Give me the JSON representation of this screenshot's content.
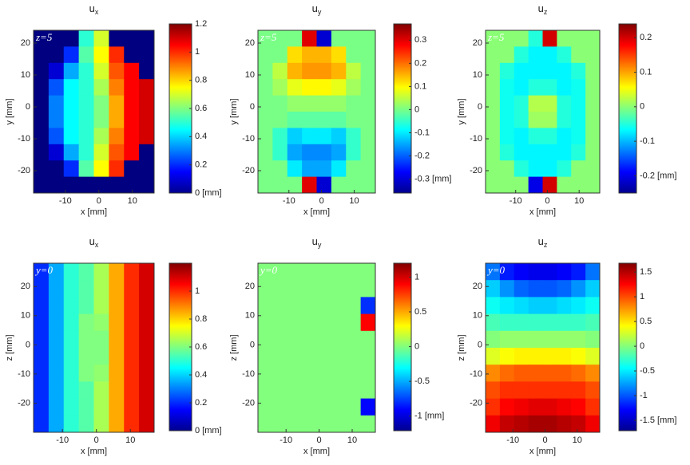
{
  "chart_data": [
    {
      "type": "heatmap",
      "title": "u",
      "title_sub": "x",
      "annotation": "z=5",
      "xlabel": "x [mm]",
      "ylabel": "y [mm]",
      "xlim": [
        -19.5,
        16.5
      ],
      "ylim": [
        -27,
        24
      ],
      "xticks": [
        -10,
        0,
        10
      ],
      "yticks": [
        -20,
        -10,
        0,
        10,
        20
      ],
      "clim": [
        0,
        1.2
      ],
      "cticks": [
        {
          "value": 0,
          "label": "0 [mm]"
        },
        0.2,
        0.4,
        0.6,
        0.8,
        1,
        1.2
      ],
      "z": [
        [
          0,
          0,
          0,
          0.5,
          0.7,
          0,
          0,
          0
        ],
        [
          0,
          0,
          0.2,
          0.55,
          0.75,
          1.0,
          0,
          0
        ],
        [
          0,
          0.1,
          0.35,
          0.5,
          0.7,
          0.95,
          1.05,
          0
        ],
        [
          0,
          0.25,
          0.45,
          0.5,
          0.65,
          0.9,
          1.05,
          1.1
        ],
        [
          0,
          0.3,
          0.45,
          0.5,
          0.6,
          0.85,
          1.05,
          1.1
        ],
        [
          0,
          0.3,
          0.45,
          0.5,
          0.6,
          0.85,
          1.05,
          1.1
        ],
        [
          0,
          0.25,
          0.45,
          0.5,
          0.65,
          0.9,
          1.05,
          1.1
        ],
        [
          0,
          0.1,
          0.35,
          0.5,
          0.7,
          0.95,
          1.05,
          0
        ],
        [
          0,
          0,
          0.2,
          0.55,
          0.75,
          1.0,
          0,
          0
        ],
        [
          0,
          0,
          0,
          0,
          0,
          0,
          0,
          0
        ]
      ]
    },
    {
      "type": "heatmap",
      "title": "u",
      "title_sub": "y",
      "annotation": "z=5",
      "xlabel": "x [mm]",
      "ylabel": "y [mm]",
      "xlim": [
        -19.5,
        16.5
      ],
      "ylim": [
        -27,
        24
      ],
      "xticks": [
        -10,
        0,
        10
      ],
      "yticks": [
        -20,
        -10,
        0,
        10,
        20
      ],
      "clim": [
        -0.36,
        0.37
      ],
      "cticks": [
        {
          "value": -0.3,
          "label": "-0.3 [mm]"
        },
        -0.2,
        -0.1,
        0,
        0.1,
        0.2,
        0.3
      ],
      "z": [
        [
          0,
          0,
          0,
          0.3,
          -0.3,
          0,
          0,
          0
        ],
        [
          0,
          0,
          0.12,
          0.15,
          0.15,
          0.12,
          0,
          0
        ],
        [
          0,
          0.05,
          0.15,
          0.17,
          0.17,
          0.15,
          0.05,
          0
        ],
        [
          0,
          0.03,
          0.08,
          0.1,
          0.1,
          0.08,
          0.03,
          0
        ],
        [
          0,
          0,
          0.02,
          0.02,
          0.02,
          0.02,
          0,
          0
        ],
        [
          0,
          0,
          -0.02,
          -0.02,
          -0.02,
          -0.02,
          0,
          0
        ],
        [
          0,
          -0.05,
          -0.12,
          -0.1,
          -0.1,
          -0.12,
          -0.05,
          0
        ],
        [
          0,
          -0.05,
          -0.15,
          -0.17,
          -0.17,
          -0.15,
          -0.05,
          0
        ],
        [
          0,
          0,
          -0.1,
          -0.15,
          -0.15,
          -0.1,
          0,
          0
        ],
        [
          0,
          0,
          0,
          0.3,
          -0.3,
          0,
          0,
          0
        ]
      ]
    },
    {
      "type": "heatmap",
      "title": "u",
      "title_sub": "z",
      "annotation": "z=5",
      "xlabel": "x [mm]",
      "ylabel": "y [mm]",
      "xlim": [
        -19.5,
        16.5
      ],
      "ylim": [
        -27,
        24
      ],
      "xticks": [
        -10,
        0,
        10
      ],
      "yticks": [
        -20,
        -10,
        0,
        10,
        20
      ],
      "clim": [
        -0.25,
        0.24
      ],
      "cticks": [
        {
          "value": -0.2,
          "label": "-0.2 [mm]"
        },
        -0.1,
        0,
        0.1,
        0.2
      ],
      "z": [
        [
          0,
          0,
          0,
          -0.05,
          0.2,
          0,
          0,
          0
        ],
        [
          0,
          0,
          -0.05,
          -0.07,
          -0.07,
          -0.05,
          0,
          0
        ],
        [
          0,
          -0.05,
          -0.07,
          -0.07,
          -0.07,
          -0.07,
          -0.05,
          0
        ],
        [
          0,
          -0.06,
          -0.07,
          -0.05,
          -0.05,
          -0.07,
          -0.06,
          0
        ],
        [
          0,
          -0.06,
          -0.05,
          0.02,
          0.02,
          -0.05,
          -0.06,
          0
        ],
        [
          0,
          -0.06,
          -0.05,
          0.01,
          0.01,
          -0.05,
          -0.06,
          0
        ],
        [
          0,
          -0.06,
          -0.07,
          -0.05,
          -0.05,
          -0.07,
          -0.06,
          0
        ],
        [
          0,
          -0.05,
          -0.07,
          -0.07,
          -0.07,
          -0.07,
          -0.05,
          0
        ],
        [
          0,
          0,
          -0.05,
          -0.07,
          -0.07,
          -0.05,
          0,
          0
        ],
        [
          0,
          0,
          0,
          -0.2,
          0.2,
          0,
          0,
          0
        ]
      ]
    },
    {
      "type": "heatmap",
      "title": "u",
      "title_sub": "x",
      "annotation": "y=0",
      "xlabel": "x [mm]",
      "ylabel": "z [mm]",
      "xlim": [
        -18.5,
        17
      ],
      "ylim": [
        -30,
        28
      ],
      "xticks": [
        -10,
        0,
        10
      ],
      "yticks": [
        -20,
        -10,
        0,
        10,
        20
      ],
      "clim": [
        0,
        1.2
      ],
      "cticks": [
        {
          "value": 0,
          "label": "0 [mm]"
        },
        0.2,
        0.4,
        0.6,
        0.8,
        1
      ],
      "z": [
        [
          0.2,
          0.35,
          0.5,
          0.55,
          0.65,
          0.85,
          1.0,
          1.1
        ],
        [
          0.2,
          0.35,
          0.5,
          0.55,
          0.65,
          0.85,
          1.0,
          1.1
        ],
        [
          0.2,
          0.35,
          0.5,
          0.55,
          0.65,
          0.85,
          1.0,
          1.1
        ],
        [
          0.2,
          0.35,
          0.5,
          0.6,
          0.62,
          0.85,
          1.0,
          1.1
        ],
        [
          0.2,
          0.35,
          0.5,
          0.6,
          0.6,
          0.85,
          1.0,
          1.1
        ],
        [
          0.2,
          0.35,
          0.5,
          0.6,
          0.6,
          0.85,
          1.0,
          1.1
        ],
        [
          0.2,
          0.35,
          0.5,
          0.6,
          0.62,
          0.85,
          1.0,
          1.1
        ],
        [
          0.2,
          0.35,
          0.5,
          0.55,
          0.65,
          0.85,
          1.0,
          1.1
        ],
        [
          0.2,
          0.35,
          0.5,
          0.55,
          0.65,
          0.85,
          1.0,
          1.1
        ],
        [
          0.2,
          0.35,
          0.5,
          0.55,
          0.65,
          0.85,
          1.0,
          1.1
        ]
      ]
    },
    {
      "type": "heatmap",
      "title": "u",
      "title_sub": "y",
      "annotation": "y=0",
      "xlabel": "x [mm]",
      "ylabel": "z [mm]",
      "xlim": [
        -18.5,
        17
      ],
      "ylim": [
        -30,
        28
      ],
      "xticks": [
        -10,
        0,
        10
      ],
      "yticks": [
        -20,
        -10,
        0,
        10,
        20
      ],
      "clim": [
        -1.21,
        1.2
      ],
      "cticks": [
        {
          "value": -1,
          "label": "-1 [mm]"
        },
        -0.5,
        0,
        0.5,
        1
      ],
      "z": [
        [
          0,
          0,
          0,
          0,
          0,
          0,
          0,
          0
        ],
        [
          0,
          0,
          0,
          0,
          0,
          0,
          0,
          0
        ],
        [
          0,
          0,
          0,
          0,
          0,
          0,
          0,
          -0.8
        ],
        [
          0,
          0,
          0,
          0,
          0,
          0,
          0,
          0.9
        ],
        [
          0,
          0,
          0,
          0,
          0,
          0,
          0,
          0
        ],
        [
          0,
          0,
          0,
          0,
          0,
          0,
          0,
          0
        ],
        [
          0,
          0,
          0,
          0,
          0,
          0,
          0,
          0
        ],
        [
          0,
          0,
          0,
          0,
          0,
          0,
          0,
          0
        ],
        [
          0,
          0,
          0,
          0,
          0,
          0,
          0,
          -0.9
        ],
        [
          0,
          0,
          0,
          0,
          0,
          0,
          0,
          0
        ]
      ]
    },
    {
      "type": "heatmap",
      "title": "u",
      "title_sub": "z",
      "annotation": "y=0",
      "xlabel": "x [mm]",
      "ylabel": "z [mm]",
      "xlim": [
        -18.5,
        17
      ],
      "ylim": [
        -30,
        28
      ],
      "xticks": [
        -10,
        0,
        10
      ],
      "yticks": [
        -20,
        -10,
        0,
        10,
        20
      ],
      "clim": [
        -1.71,
        1.68
      ],
      "cticks": [
        {
          "value": -1.5,
          "label": "-1.5 [mm]"
        },
        -1,
        -0.5,
        0,
        0.5,
        1,
        1.5
      ],
      "z": [
        [
          -0.9,
          -1.2,
          -1.3,
          -1.35,
          -1.35,
          -1.3,
          -1.2,
          -0.9
        ],
        [
          -0.6,
          -0.8,
          -0.95,
          -1.0,
          -1.0,
          -0.95,
          -0.8,
          -0.6
        ],
        [
          -0.4,
          -0.5,
          -0.55,
          -0.6,
          -0.6,
          -0.55,
          -0.5,
          -0.4
        ],
        [
          -0.2,
          -0.25,
          -0.25,
          -0.25,
          -0.25,
          -0.25,
          -0.25,
          -0.2
        ],
        [
          0.0,
          0.05,
          0.05,
          0.05,
          0.05,
          0.05,
          0.05,
          0.0
        ],
        [
          0.3,
          0.4,
          0.45,
          0.45,
          0.45,
          0.45,
          0.4,
          0.3
        ],
        [
          0.8,
          0.9,
          0.95,
          0.95,
          0.95,
          0.95,
          0.9,
          0.8
        ],
        [
          1.0,
          1.1,
          1.1,
          1.1,
          1.1,
          1.1,
          1.1,
          1.0
        ],
        [
          1.1,
          1.25,
          1.3,
          1.35,
          1.35,
          1.3,
          1.25,
          1.1
        ],
        [
          1.3,
          1.45,
          1.5,
          1.55,
          1.55,
          1.5,
          1.45,
          1.3
        ]
      ]
    }
  ]
}
